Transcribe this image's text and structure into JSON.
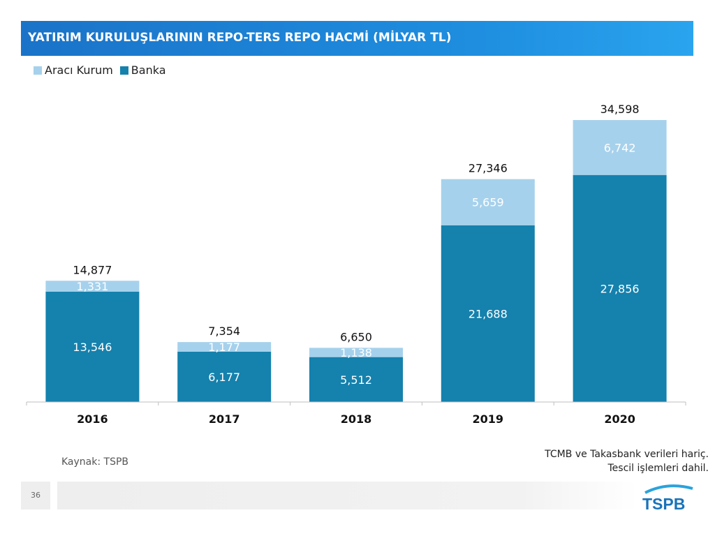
{
  "title": "YATIRIM KURULUŞLARININ REPO-TERS REPO HACMİ (MİLYAR TL)",
  "legend": [
    {
      "label": "Aracı Kurum",
      "color": "#a6d1ec"
    },
    {
      "label": "Banka",
      "color": "#1581ad"
    }
  ],
  "chart_data": {
    "type": "bar",
    "stacked": true,
    "title": "YATIRIM KURULUŞLARININ REPO-TERS REPO HACMİ (MİLYAR TL)",
    "categories": [
      "2016",
      "2017",
      "2018",
      "2019",
      "2020"
    ],
    "series": [
      {
        "name": "Banka",
        "values": [
          13546,
          6177,
          5512,
          21688,
          27856
        ],
        "labels": [
          "13,546",
          "6,177",
          "5,512",
          "21,688",
          "27,856"
        ],
        "color": "#1581ad"
      },
      {
        "name": "Aracı Kurum",
        "values": [
          1331,
          1177,
          1138,
          5659,
          6742
        ],
        "labels": [
          "1,331",
          "1,177",
          "1,138",
          "5,659",
          "6,742"
        ],
        "color": "#a6d1ec"
      }
    ],
    "totals": [
      "14,877",
      "7,354",
      "6,650",
      "27,346",
      "34,598"
    ],
    "xlabel": "",
    "ylabel": "",
    "ylim": [
      0,
      34598
    ],
    "legend_position": "top-left",
    "grid": false
  },
  "source": "Kaynak: TSPB",
  "note": [
    "TCMB ve Takasbank verileri hariç.",
    "Tescil işlemleri dahil."
  ],
  "page_number": "36",
  "logo_text": "TSPB"
}
